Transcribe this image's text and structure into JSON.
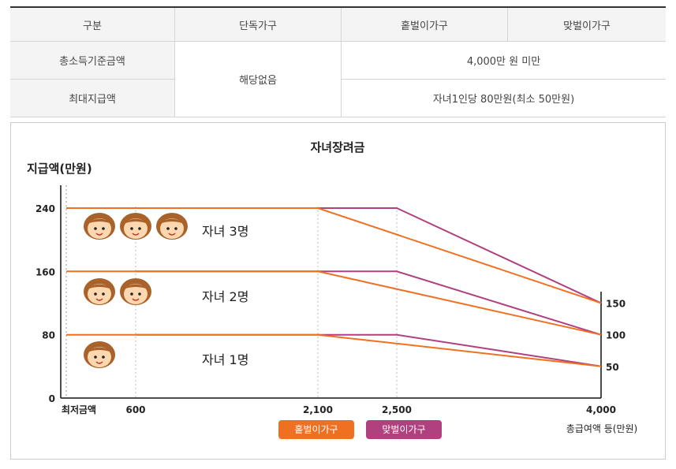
{
  "table": {
    "headers": [
      "구분",
      "단독가구",
      "홑벌이가구",
      "맞벌이가구"
    ],
    "rows": [
      {
        "label": "총소득기준금액",
        "single": "해당없음",
        "shared": "4,000만 원 미만"
      },
      {
        "label": "최대지급액",
        "shared": "자녀1인당 80만원(최소 50만원)"
      }
    ]
  },
  "chart_data": {
    "type": "line",
    "title": "자녀장려금",
    "ylabel": "지급액(만원)",
    "xlabel": "총급여액 등(만원)",
    "x_ticks": [
      {
        "value": 0,
        "label": "최저금액"
      },
      {
        "value": 600,
        "label": "600"
      },
      {
        "value": 2100,
        "label": "2,100"
      },
      {
        "value": 2500,
        "label": "2,500"
      },
      {
        "value": 4000,
        "label": "4,000"
      }
    ],
    "y_ticks": [
      0,
      80,
      160,
      240
    ],
    "right_ticks": [
      150,
      100,
      50
    ],
    "groups": [
      {
        "label": "자녀 3명",
        "faces": 3
      },
      {
        "label": "자녀 2명",
        "faces": 2
      },
      {
        "label": "자녀 1명",
        "faces": 1
      }
    ],
    "series": [
      {
        "name": "홑벌이가구",
        "color": "#f07022",
        "lines": [
          [
            [
              0,
              240
            ],
            [
              2100,
              240
            ],
            [
              4000,
              120
            ]
          ],
          [
            [
              0,
              160
            ],
            [
              2100,
              160
            ],
            [
              4000,
              80
            ]
          ],
          [
            [
              0,
              80
            ],
            [
              2100,
              80
            ],
            [
              4000,
              40
            ]
          ]
        ]
      },
      {
        "name": "맞벌이가구",
        "color": "#b0407e",
        "lines": [
          [
            [
              600,
              240
            ],
            [
              2500,
              240
            ],
            [
              4000,
              120
            ]
          ],
          [
            [
              600,
              160
            ],
            [
              2500,
              160
            ],
            [
              4000,
              80
            ]
          ],
          [
            [
              600,
              80
            ],
            [
              2500,
              80
            ],
            [
              4000,
              40
            ]
          ]
        ]
      }
    ],
    "right_axis_labels": {
      "150": 120,
      "100": 80,
      "50": 40
    },
    "xlim": [
      0,
      4000
    ],
    "ylim": [
      0,
      240
    ]
  }
}
